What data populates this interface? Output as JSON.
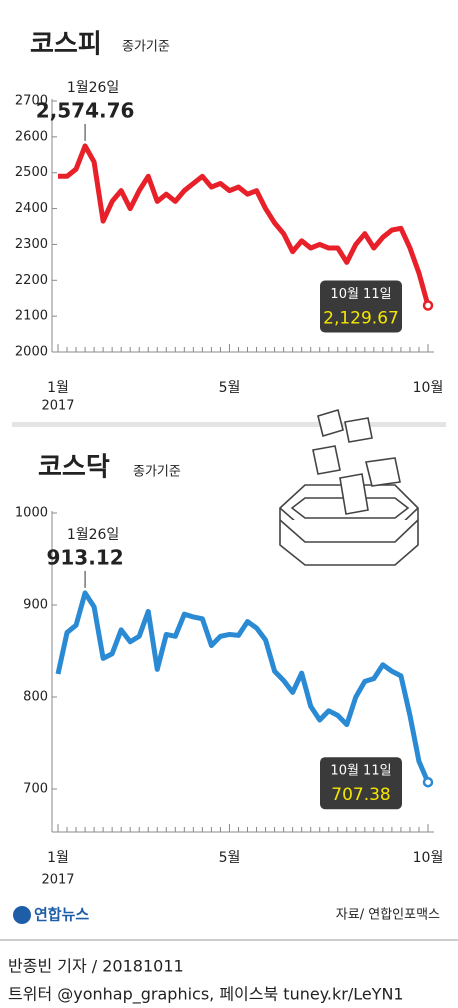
{
  "chart_data": [
    {
      "type": "line",
      "title": "코스피",
      "subtitle": "종가기준",
      "categories": [
        "1월",
        null,
        null,
        null,
        null,
        null,
        null,
        null,
        null,
        null,
        null,
        null,
        null,
        null,
        null,
        null,
        null,
        null,
        null,
        "5월",
        null,
        null,
        null,
        null,
        null,
        null,
        null,
        null,
        null,
        null,
        null,
        null,
        null,
        null,
        null,
        null,
        null,
        null,
        null,
        null,
        null,
        "10월"
      ],
      "x_sublabel": "2017",
      "series": [
        {
          "name": "코스피",
          "color": "#e8202a",
          "values": [
            2490,
            2490,
            2510,
            2574.76,
            2530,
            2365,
            2420,
            2450,
            2400,
            2450,
            2490,
            2420,
            2440,
            2420,
            2450,
            2470,
            2490,
            2460,
            2470,
            2450,
            2460,
            2440,
            2450,
            2400,
            2360,
            2330,
            2280,
            2310,
            2290,
            2300,
            2290,
            2290,
            2250,
            2300,
            2330,
            2290,
            2320,
            2340,
            2345,
            2290,
            2220,
            2129.67
          ],
          "value_labels": [
            null,
            null,
            null,
            "2,574.76",
            null,
            null,
            null,
            null,
            null,
            null,
            null,
            null,
            null,
            null,
            null,
            null,
            null,
            null,
            null,
            null,
            null,
            null,
            null,
            null,
            null,
            null,
            null,
            null,
            null,
            null,
            null,
            null,
            null,
            null,
            null,
            null,
            null,
            null,
            null,
            null,
            null,
            "2,129.67"
          ],
          "date_labels": [
            null,
            null,
            null,
            "1월26일",
            null,
            null,
            null,
            null,
            null,
            null,
            null,
            null,
            null,
            null,
            null,
            null,
            null,
            null,
            null,
            null,
            null,
            null,
            null,
            null,
            null,
            null,
            null,
            null,
            null,
            null,
            null,
            null,
            null,
            null,
            null,
            null,
            null,
            null,
            null,
            null,
            null,
            "10월 11일"
          ]
        }
      ],
      "ylim": [
        2000,
        2700
      ],
      "yticks": [
        2000,
        2100,
        2200,
        2300,
        2400,
        2500,
        2600,
        2700
      ]
    },
    {
      "type": "line",
      "title": "코스닥",
      "subtitle": "종가기준",
      "categories": [
        "1월",
        null,
        null,
        null,
        null,
        null,
        null,
        null,
        null,
        null,
        null,
        null,
        null,
        null,
        null,
        null,
        null,
        null,
        null,
        "5월",
        null,
        null,
        null,
        null,
        null,
        null,
        null,
        null,
        null,
        null,
        null,
        null,
        null,
        null,
        null,
        null,
        null,
        null,
        null,
        null,
        null,
        "10월"
      ],
      "x_sublabel": "2017",
      "series": [
        {
          "name": "코스닥",
          "color": "#2a8ad4",
          "values": [
            825,
            870,
            878,
            913.12,
            898,
            842,
            847,
            873,
            860,
            866,
            893,
            830,
            868,
            866,
            890,
            887,
            885,
            856,
            866,
            868,
            867,
            882,
            875,
            862,
            828,
            818,
            805,
            826,
            790,
            775,
            785,
            780,
            770,
            800,
            817,
            820,
            835,
            828,
            823,
            780,
            730,
            707.38
          ],
          "value_labels": [
            null,
            null,
            null,
            null,
            null,
            null,
            null,
            null,
            null,
            null,
            null,
            null,
            null,
            null,
            null,
            null,
            null,
            null,
            null,
            null,
            null,
            null,
            null,
            null,
            null,
            null,
            null,
            null,
            null,
            null,
            null,
            null,
            null,
            null,
            null,
            null,
            null,
            null,
            null,
            null,
            null,
            null
          ],
          "date_labels": [
            null,
            null,
            null,
            "1월26일",
            null,
            null,
            null,
            null,
            null,
            null,
            null,
            null,
            null,
            null,
            null,
            null,
            null,
            null,
            null,
            null,
            null,
            null,
            null,
            null,
            null,
            null,
            null,
            null,
            null,
            null,
            null,
            null,
            null,
            null,
            null,
            null,
            null,
            null,
            null,
            null,
            null,
            "10월 11일"
          ]
        }
      ],
      "ylim": [
        650,
        1000
      ],
      "yticks": [
        700,
        800,
        900,
        1000
      ]
    }
  ],
  "logo": "연합뉴스",
  "source": "자료/ 연합인포맥스",
  "credit": "반종빈 기자 / 20181011",
  "sns": "트위터 @yonhap_graphics, 페이스북 tuney.kr/LeYN1"
}
